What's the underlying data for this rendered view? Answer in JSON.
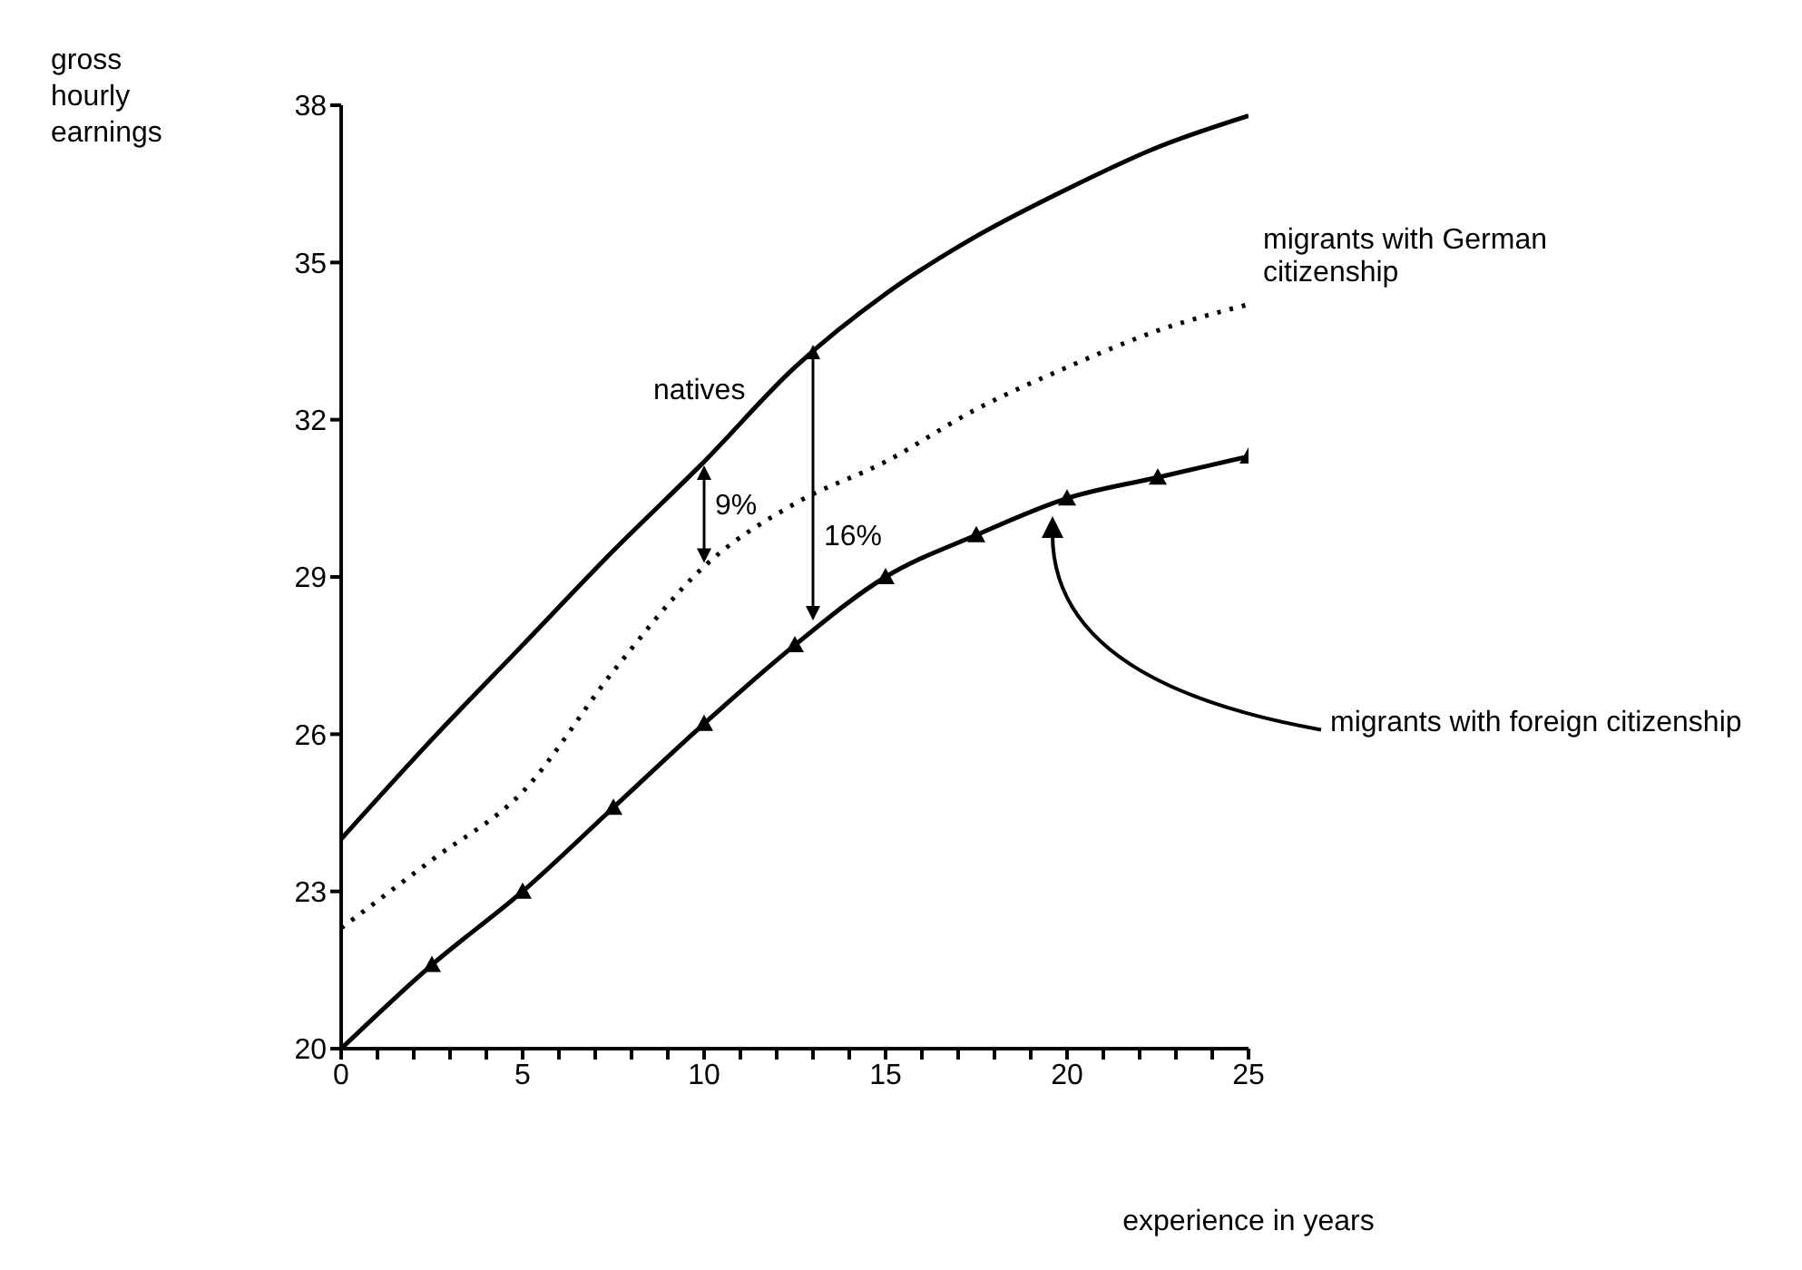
{
  "chart_data": {
    "type": "line",
    "ylabel": "gross hourly earnings",
    "xlabel": "experience in years",
    "x": [
      0,
      2.5,
      5,
      7.5,
      10,
      12.5,
      15,
      17.5,
      20,
      22.5,
      25
    ],
    "series": [
      {
        "name": "natives",
        "color": "#000000",
        "line_style": "solid",
        "marker": "none",
        "values": [
          24.0,
          25.9,
          27.7,
          29.5,
          31.2,
          33.0,
          34.4,
          35.5,
          36.4,
          37.2,
          37.8
        ]
      },
      {
        "name": "migrants with German citizenship",
        "color": "#000000",
        "line_style": "dotted",
        "marker": "none",
        "values": [
          22.3,
          23.6,
          24.9,
          27.2,
          29.2,
          30.4,
          31.2,
          32.2,
          33.0,
          33.7,
          34.2
        ]
      },
      {
        "name": "migrants with foreign citizenship",
        "color": "#000000",
        "line_style": "solid",
        "marker": "triangle",
        "values": [
          20.0,
          21.6,
          23.0,
          24.6,
          26.2,
          27.7,
          29.0,
          29.8,
          30.5,
          30.9,
          31.3
        ]
      }
    ],
    "xlim": [
      0,
      25
    ],
    "xticks": [
      0,
      {
        "value": 1,
        "label": null
      },
      {
        "value": 2,
        "label": null
      },
      {
        "value": 3,
        "label": null
      },
      {
        "value": 4,
        "label": null
      },
      5,
      {
        "value": 6,
        "label": null
      },
      {
        "value": 7,
        "label": null
      },
      {
        "value": 8,
        "label": null
      },
      {
        "value": 9,
        "label": null
      },
      10,
      {
        "value": 11,
        "label": null
      },
      {
        "value": 12,
        "label": null
      },
      {
        "value": 13,
        "label": null
      },
      {
        "value": 14,
        "label": null
      },
      15,
      {
        "value": 16,
        "label": null
      },
      {
        "value": 17,
        "label": null
      },
      {
        "value": 18,
        "label": null
      },
      {
        "value": 19,
        "label": null
      },
      20,
      {
        "value": 21,
        "label": null
      },
      {
        "value": 22,
        "label": null
      },
      {
        "value": 23,
        "label": null
      },
      {
        "value": 24,
        "label": null
      },
      25
    ],
    "ylim": [
      20,
      38
    ],
    "yticks": [
      20,
      23,
      26,
      29,
      32,
      35,
      38
    ],
    "annotations": [
      "9%",
      "16%"
    ],
    "grid": false,
    "legend": false
  }
}
